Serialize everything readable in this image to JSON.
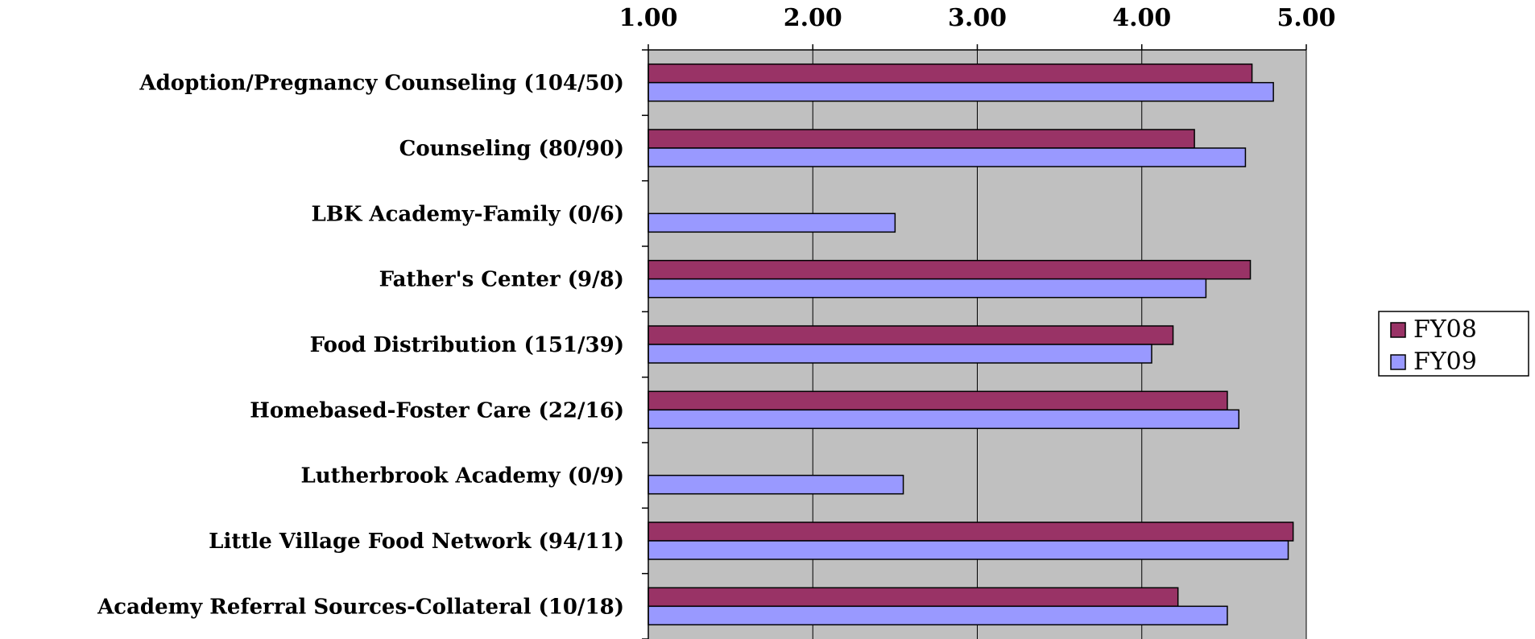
{
  "chart_data": {
    "type": "bar",
    "orientation": "horizontal",
    "categories": [
      "Adoption/Pregnancy Counseling (104/50)",
      "Counseling (80/90)",
      "LBK Academy-Family (0/6)",
      "Father's Center (9/8)",
      "Food Distribution (151/39)",
      "Homebased-Foster Care (22/16)",
      "Lutherbrook Academy (0/9)",
      "Little Village Food Network (94/11)",
      "Academy Referral Sources-Collateral (10/18)"
    ],
    "series": [
      {
        "name": "FY08",
        "color": "#993366",
        "values": [
          4.67,
          4.32,
          null,
          4.66,
          4.19,
          4.52,
          null,
          4.92,
          4.22
        ]
      },
      {
        "name": "FY09",
        "color": "#9999ff",
        "values": [
          4.8,
          4.63,
          2.5,
          4.39,
          4.06,
          4.59,
          2.55,
          4.89,
          4.52
        ]
      }
    ],
    "xlim": [
      1.0,
      5.0
    ],
    "xticks": [
      "1.00",
      "2.00",
      "3.00",
      "4.00",
      "5.00"
    ],
    "x_axis_position": "top",
    "grid": true,
    "plot_background": "#c0c0c0",
    "legend_position": "right",
    "title": "",
    "xlabel": "",
    "ylabel": ""
  }
}
